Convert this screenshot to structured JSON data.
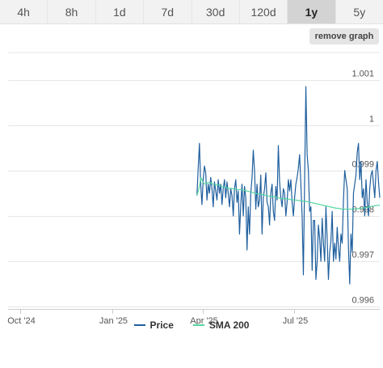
{
  "tabs": [
    {
      "label": "4h",
      "active": false
    },
    {
      "label": "8h",
      "active": false
    },
    {
      "label": "1d",
      "active": false
    },
    {
      "label": "7d",
      "active": false
    },
    {
      "label": "30d",
      "active": false
    },
    {
      "label": "120d",
      "active": false
    },
    {
      "label": "1y",
      "active": true
    },
    {
      "label": "5y",
      "active": false
    }
  ],
  "remove_button": "remove graph",
  "colors": {
    "price": "#1f5f9e",
    "sma": "#55d6a0",
    "grid": "#e6e6e6"
  },
  "chart_data": {
    "type": "line",
    "x_ticks": [
      "Oct '24",
      "Jan '25",
      "Apr '25",
      "Jul '25"
    ],
    "y_ticks": [
      0.996,
      0.997,
      0.998,
      0.999,
      1,
      1.001
    ],
    "y_tick_labels": [
      "0.996",
      "0.997",
      "0.998",
      "0.999",
      "1",
      "1.001"
    ],
    "ylim": [
      0.996,
      1.0015
    ],
    "xlim": [
      "2024-09-19",
      "2025-09-24"
    ],
    "grid": true,
    "legend_position": "bottom",
    "series": [
      {
        "name": "Price",
        "x_start": "2025-03-26",
        "x_end": "2025-09-24",
        "values": [
          0.99845,
          0.99905,
          0.9996,
          0.9987,
          0.99825,
          0.9988,
          0.9991,
          0.99895,
          0.99835,
          0.9987,
          0.9985,
          0.99885,
          0.9986,
          0.9982,
          0.99875,
          0.99855,
          0.99835,
          0.9988,
          0.9985,
          0.9987,
          0.99825,
          0.9986,
          0.9988,
          0.9984,
          0.99875,
          0.9985,
          0.9982,
          0.9986,
          0.99845,
          0.998,
          0.9986,
          0.9988,
          0.9983,
          0.99855,
          0.9976,
          0.99825,
          0.9987,
          0.998,
          0.99865,
          0.9984,
          0.99725,
          0.9982,
          0.9976,
          0.9985,
          0.99885,
          0.99945,
          0.999,
          0.99815,
          0.9987,
          0.9982,
          0.99835,
          0.9989,
          0.9976,
          0.9984,
          0.9986,
          0.99895,
          0.9983,
          0.9982,
          0.9978,
          0.9985,
          0.9987,
          0.9981,
          0.9979,
          0.99865,
          0.99835,
          0.99955,
          0.99875,
          0.9984,
          0.9982,
          0.9986,
          0.9985,
          0.998,
          0.9983,
          0.9988,
          0.99855,
          0.9988,
          0.9983,
          0.998,
          0.9984,
          0.9987,
          0.99885,
          0.99905,
          0.99935,
          0.9987,
          0.998,
          0.9967,
          0.9988,
          1.00085,
          0.99935,
          0.999,
          0.9981,
          0.9982,
          0.9968,
          0.9979,
          0.9979,
          0.9966,
          0.997,
          0.9978,
          0.9975,
          0.997,
          0.99795,
          0.9974,
          0.997,
          0.9982,
          0.9975,
          0.9966,
          0.9972,
          0.99745,
          0.9981,
          0.997,
          0.9974,
          0.99705,
          0.99775,
          0.9973,
          0.997,
          0.9976,
          0.9974,
          0.99835,
          0.999,
          0.9988,
          0.9986,
          0.9973,
          0.9965,
          0.9976,
          0.9972,
          0.9985,
          0.9987,
          0.9989,
          0.9994,
          0.9996,
          0.9988,
          0.9992,
          0.9984,
          0.9986,
          0.998,
          0.9988,
          0.9983,
          0.998,
          0.9986,
          0.9989,
          0.999,
          0.9987,
          0.9984,
          0.999,
          0.9992,
          0.99875,
          0.9984
        ]
      },
      {
        "name": "SMA 200",
        "x_start": "2025-03-26",
        "x_end": "2025-09-24",
        "values": [
          0.99845,
          0.9986,
          0.99885,
          0.99875,
          0.9987,
          0.99872,
          0.99874,
          0.99873,
          0.9987,
          0.9987,
          0.99868,
          0.99868,
          0.99866,
          0.99864,
          0.99864,
          0.99862,
          0.9986,
          0.99861,
          0.9986,
          0.99859,
          0.99858,
          0.99858,
          0.99858,
          0.99857,
          0.99856,
          0.99855,
          0.99854,
          0.99853,
          0.99852,
          0.9985,
          0.99849,
          0.99849,
          0.99848,
          0.99847,
          0.99846,
          0.99845,
          0.99844,
          0.99843,
          0.99843,
          0.99842,
          0.99841,
          0.9984,
          0.99839,
          0.99838,
          0.99838,
          0.99838,
          0.99837,
          0.99836,
          0.99836,
          0.99835,
          0.99835,
          0.99834,
          0.99834,
          0.99833,
          0.99832,
          0.99832,
          0.99831,
          0.9983,
          0.99829,
          0.99828,
          0.99827,
          0.99826,
          0.99825,
          0.99824,
          0.99823,
          0.99822,
          0.99821,
          0.9982,
          0.99819,
          0.99818,
          0.99817,
          0.99817,
          0.99816,
          0.99815,
          0.99815,
          0.99815,
          0.99815,
          0.99815,
          0.99815,
          0.99815,
          0.99816,
          0.99816,
          0.99817,
          0.99817,
          0.99818,
          0.99818,
          0.99819,
          0.9982,
          0.99821,
          0.99822,
          0.99823,
          0.99823,
          0.99824
        ]
      }
    ]
  },
  "legend": [
    {
      "label": "Price",
      "color": "#1f5f9e"
    },
    {
      "label": "SMA 200",
      "color": "#55d6a0"
    }
  ]
}
